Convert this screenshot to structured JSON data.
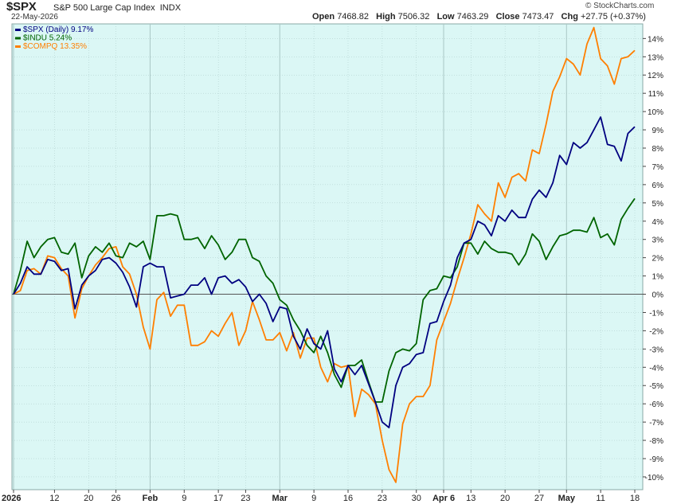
{
  "header": {
    "symbol": "$SPX",
    "name": "S&P 500 Large Cap Index",
    "exchange": "INDX",
    "date": "22-May-2026",
    "watermark": "© StockCharts.com",
    "quote": {
      "open_label": "Open",
      "open": "7468.82",
      "high_label": "High",
      "high": "7506.32",
      "low_label": "Low",
      "low": "7463.29",
      "close_label": "Close",
      "close": "7473.47",
      "chg_label": "Chg",
      "chg": "+27.75 (+0.37%)"
    }
  },
  "colors": {
    "plot_background": "#dbf7f5",
    "zero_line": "#555555",
    "grid": "#a9c7c5"
  },
  "chart_data": {
    "type": "line",
    "title": "$SPX",
    "xlabel": "",
    "ylabel": "",
    "ylim": [
      -10.7,
      14.8
    ],
    "y_ticks": [
      -10,
      -9,
      -8,
      -7,
      -6,
      -5,
      -4,
      -3,
      -2,
      -1,
      0,
      1,
      2,
      3,
      4,
      5,
      6,
      7,
      8,
      9,
      10,
      11,
      12,
      13,
      14
    ],
    "y_tick_suffix": "%",
    "x_tick_labels": [
      {
        "label": "2026",
        "index": 0,
        "bold": true
      },
      {
        "label": "12",
        "index": 6
      },
      {
        "label": "20",
        "index": 11
      },
      {
        "label": "26",
        "index": 15
      },
      {
        "label": "Feb",
        "index": 20,
        "bold": true
      },
      {
        "label": "9",
        "index": 25
      },
      {
        "label": "17",
        "index": 30
      },
      {
        "label": "23",
        "index": 34
      },
      {
        "label": "Mar",
        "index": 39,
        "bold": true
      },
      {
        "label": "9",
        "index": 44
      },
      {
        "label": "16",
        "index": 49
      },
      {
        "label": "23",
        "index": 54
      },
      {
        "label": "30",
        "index": 59
      },
      {
        "label": "Apr 6",
        "index": 63,
        "bold": true
      },
      {
        "label": "13",
        "index": 67
      },
      {
        "label": "20",
        "index": 72
      },
      {
        "label": "27",
        "index": 77
      },
      {
        "label": "May",
        "index": 81,
        "bold": true
      },
      {
        "label": "11",
        "index": 86
      },
      {
        "label": "18",
        "index": 91
      }
    ],
    "series": [
      {
        "name": "$SPX (Daily) 9.17%",
        "color": "#000080",
        "values": [
          0,
          0.6,
          1.5,
          1.1,
          1.1,
          1.9,
          1.8,
          1.3,
          1.4,
          -0.8,
          0.5,
          1.0,
          1.3,
          1.9,
          2.0,
          1.7,
          1.2,
          0.4,
          -0.7,
          1.5,
          1.7,
          1.5,
          1.5,
          -0.2,
          -0.1,
          0.0,
          0.5,
          0.5,
          0.9,
          0.0,
          0.9,
          1.0,
          0.6,
          0.8,
          0.4,
          -0.4,
          0.0,
          -0.5,
          -1.5,
          -0.7,
          -0.8,
          -2.3,
          -3.0,
          -1.9,
          -2.7,
          -3.0,
          -2.0,
          -4.1,
          -4.8,
          -3.9,
          -4.4,
          -3.9,
          -4.9,
          -5.9,
          -7.0,
          -7.3,
          -5.0,
          -4.0,
          -3.8,
          -3.3,
          -3.2,
          -1.6,
          -1.5,
          -0.4,
          0.5,
          2.0,
          2.8,
          3.0,
          4.0,
          3.8,
          3.2,
          4.3,
          4.0,
          4.6,
          4.2,
          4.2,
          5.2,
          5.7,
          5.3,
          6.1,
          7.6,
          7.1,
          8.3,
          8.0,
          8.3,
          9.0,
          9.7,
          8.2,
          8.1,
          7.3,
          8.8,
          9.17
        ]
      },
      {
        "name": "$INDU 5.24%",
        "color": "#006400",
        "values": [
          0,
          1.3,
          2.9,
          2.0,
          2.6,
          3.0,
          3.1,
          2.3,
          2.2,
          2.8,
          0.9,
          2.1,
          2.6,
          2.3,
          2.8,
          2.1,
          2.0,
          2.8,
          2.6,
          2.9,
          1.9,
          4.3,
          4.3,
          4.4,
          4.3,
          3.0,
          3.0,
          3.1,
          2.5,
          3.2,
          2.7,
          1.9,
          2.3,
          3.0,
          3.0,
          2.0,
          1.8,
          1.0,
          0.6,
          -0.3,
          -0.6,
          -1.4,
          -2.0,
          -2.8,
          -3.2,
          -2.3,
          -3.2,
          -4.4,
          -5.1,
          -3.9,
          -3.9,
          -3.6,
          -4.8,
          -5.9,
          -5.9,
          -4.2,
          -3.2,
          -3.0,
          -3.1,
          -2.7,
          -0.3,
          0.2,
          0.3,
          1.0,
          0.9,
          1.5,
          2.8,
          2.8,
          2.2,
          2.9,
          2.5,
          2.3,
          2.3,
          2.2,
          1.6,
          2.2,
          3.3,
          2.9,
          1.9,
          2.6,
          3.2,
          3.3,
          3.5,
          3.5,
          3.4,
          4.2,
          3.1,
          3.3,
          2.7,
          4.1,
          4.7,
          5.24
        ]
      },
      {
        "name": "$COMPQ 13.35%",
        "color": "#ff7f00",
        "values": [
          0,
          0.2,
          1.3,
          1.4,
          1.1,
          2.1,
          2.0,
          1.4,
          1.0,
          -1.3,
          0.3,
          1.0,
          1.6,
          2.0,
          2.5,
          2.6,
          1.5,
          1.1,
          0.0,
          -1.8,
          -3.0,
          -0.3,
          0.1,
          -1.2,
          -0.6,
          -0.6,
          -2.8,
          -2.8,
          -2.6,
          -2.0,
          -2.3,
          -1.6,
          -1.0,
          -2.8,
          -2.0,
          -0.4,
          -1.4,
          -2.5,
          -2.5,
          -2.1,
          -3.1,
          -2.1,
          -3.5,
          -2.4,
          -2.4,
          -4.0,
          -4.8,
          -3.8,
          -4.0,
          -3.9,
          -6.7,
          -5.2,
          -5.5,
          -6.0,
          -8.0,
          -9.6,
          -10.3,
          -7.1,
          -6.0,
          -5.6,
          -5.6,
          -5.0,
          -2.5,
          -1.5,
          -0.5,
          0.8,
          2.0,
          3.3,
          4.9,
          4.4,
          4.0,
          6.1,
          5.3,
          6.4,
          6.6,
          6.2,
          7.9,
          7.7,
          9.3,
          11.1,
          11.9,
          12.9,
          12.6,
          12.0,
          13.7,
          14.6,
          12.9,
          12.5,
          11.5,
          12.9,
          13.0,
          13.35
        ]
      }
    ]
  }
}
